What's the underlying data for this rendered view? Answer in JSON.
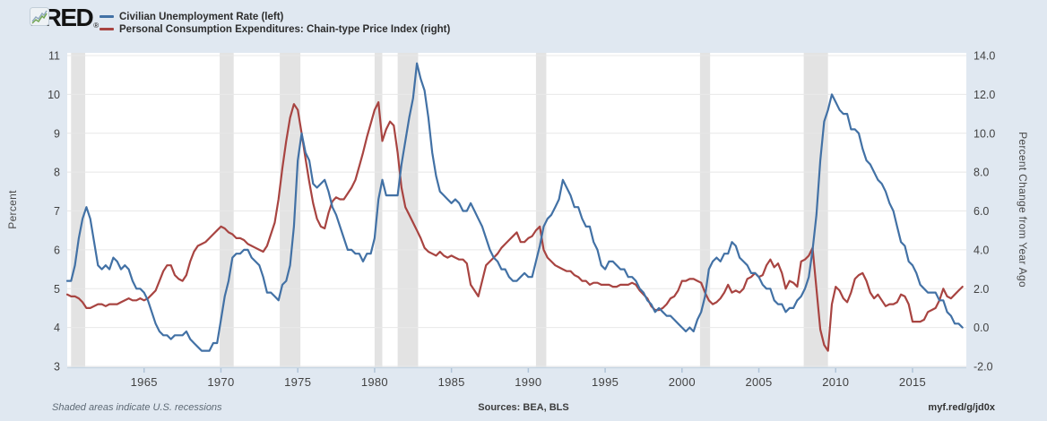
{
  "header": {
    "logo_text": "FRED",
    "reg_mark": "®",
    "legend": [
      {
        "label": "Civilian Unemployment Rate (left)",
        "color": "#4271a5"
      },
      {
        "label": "Personal Consumption Expenditures: Chain-type Price Index (right)",
        "color": "#a84441"
      }
    ]
  },
  "footer": {
    "recession_note": "Shaded areas indicate U.S. recessions",
    "sources": "Sources: BEA, BLS",
    "short_url": "myf.red/g/jd0x"
  },
  "chart_data": {
    "type": "line",
    "x_range": [
      1960,
      2018.5
    ],
    "x_ticks": [
      1965,
      1970,
      1975,
      1980,
      1985,
      1990,
      1995,
      2000,
      2005,
      2010,
      2015
    ],
    "grid": true,
    "plot_bg": "#ffffff",
    "grid_color": "#e8e8e8",
    "band_color": "#e3e3e3",
    "axis_line_color": "#c7d6e3",
    "tick_color": "#b0c4d8",
    "tick_label_color": "#424242",
    "left_axis": {
      "label": "Percent",
      "range": [
        3,
        11
      ],
      "ticks": [
        3,
        4,
        5,
        6,
        7,
        8,
        9,
        10,
        11
      ],
      "tick_labels": [
        "3",
        "4",
        "5",
        "6",
        "7",
        "8",
        "9",
        "10",
        "11"
      ]
    },
    "right_axis": {
      "label": "Percent Change from Year Ago",
      "range": [
        -2,
        14
      ],
      "ticks": [
        -2,
        0,
        2,
        4,
        6,
        8,
        10,
        12,
        14
      ],
      "tick_labels": [
        "-2.0",
        "0.0",
        "2.0",
        "4.0",
        "6.0",
        "8.0",
        "10.0",
        "12.0",
        "14.0"
      ]
    },
    "recessions": [
      [
        1960.25,
        1961.17
      ],
      [
        1969.92,
        1970.83
      ],
      [
        1973.83,
        1975.17
      ],
      [
        1980.0,
        1980.5
      ],
      [
        1981.5,
        1982.83
      ],
      [
        1990.5,
        1991.17
      ],
      [
        2001.17,
        2001.83
      ],
      [
        2007.92,
        2009.5
      ]
    ],
    "series": [
      {
        "name": "Personal Consumption Expenditures: Chain-type Price Index",
        "axis": "right",
        "color": "#a84441",
        "x_start": 1960.0,
        "x_step": 0.25,
        "values": [
          1.7,
          1.6,
          1.6,
          1.5,
          1.3,
          1.0,
          1.0,
          1.1,
          1.2,
          1.2,
          1.1,
          1.2,
          1.2,
          1.2,
          1.3,
          1.4,
          1.5,
          1.4,
          1.4,
          1.5,
          1.4,
          1.5,
          1.7,
          1.9,
          2.4,
          2.9,
          3.2,
          3.2,
          2.7,
          2.5,
          2.4,
          2.7,
          3.4,
          3.9,
          4.2,
          4.3,
          4.4,
          4.6,
          4.8,
          5.0,
          5.2,
          5.1,
          4.9,
          4.8,
          4.6,
          4.6,
          4.5,
          4.3,
          4.2,
          4.1,
          4.0,
          3.9,
          4.2,
          4.8,
          5.4,
          6.6,
          8.2,
          9.6,
          10.8,
          11.5,
          11.2,
          10.0,
          8.7,
          7.5,
          6.4,
          5.6,
          5.2,
          5.1,
          5.9,
          6.5,
          6.7,
          6.6,
          6.6,
          6.9,
          7.2,
          7.6,
          8.3,
          9.0,
          9.8,
          10.5,
          11.2,
          11.6,
          9.6,
          10.2,
          10.6,
          10.4,
          9.0,
          7.2,
          6.2,
          5.8,
          5.4,
          5.0,
          4.6,
          4.1,
          3.9,
          3.8,
          3.7,
          3.9,
          3.7,
          3.6,
          3.7,
          3.6,
          3.5,
          3.5,
          3.3,
          2.2,
          1.9,
          1.6,
          2.4,
          3.2,
          3.4,
          3.6,
          3.8,
          4.1,
          4.3,
          4.5,
          4.7,
          4.9,
          4.4,
          4.4,
          4.6,
          4.7,
          5.0,
          5.2,
          4.0,
          3.6,
          3.4,
          3.2,
          3.1,
          3.0,
          2.9,
          2.9,
          2.7,
          2.6,
          2.4,
          2.4,
          2.2,
          2.3,
          2.3,
          2.2,
          2.2,
          2.2,
          2.1,
          2.1,
          2.2,
          2.2,
          2.2,
          2.3,
          2.2,
          1.9,
          1.7,
          1.5,
          1.1,
          0.9,
          0.9,
          1.0,
          1.2,
          1.5,
          1.6,
          1.9,
          2.4,
          2.4,
          2.5,
          2.5,
          2.4,
          2.3,
          1.8,
          1.4,
          1.2,
          1.3,
          1.5,
          1.8,
          2.2,
          1.8,
          1.9,
          1.8,
          2.0,
          2.5,
          2.6,
          2.8,
          2.6,
          2.7,
          3.2,
          3.5,
          3.1,
          3.3,
          2.8,
          2.0,
          2.4,
          2.3,
          2.1,
          3.4,
          3.5,
          3.7,
          4.1,
          2.0,
          -0.1,
          -0.9,
          -1.2,
          1.2,
          2.1,
          1.9,
          1.5,
          1.3,
          1.8,
          2.5,
          2.7,
          2.8,
          2.4,
          1.8,
          1.5,
          1.7,
          1.4,
          1.1,
          1.2,
          1.2,
          1.3,
          1.7,
          1.6,
          1.2,
          0.3,
          0.3,
          0.3,
          0.4,
          0.8,
          0.9,
          1.0,
          1.4,
          2.0,
          1.6,
          1.5,
          1.7,
          1.9,
          2.1
        ]
      },
      {
        "name": "Civilian Unemployment Rate",
        "axis": "left",
        "color": "#4271a5",
        "x_start": 1960.0,
        "x_step": 0.25,
        "values": [
          5.2,
          5.2,
          5.6,
          6.3,
          6.8,
          7.1,
          6.8,
          6.2,
          5.6,
          5.5,
          5.6,
          5.5,
          5.8,
          5.7,
          5.5,
          5.6,
          5.5,
          5.2,
          5.0,
          5.0,
          4.9,
          4.7,
          4.4,
          4.1,
          3.9,
          3.8,
          3.8,
          3.7,
          3.8,
          3.8,
          3.8,
          3.9,
          3.7,
          3.6,
          3.5,
          3.4,
          3.4,
          3.4,
          3.6,
          3.6,
          4.2,
          4.8,
          5.2,
          5.8,
          5.9,
          5.9,
          6.0,
          6.0,
          5.8,
          5.7,
          5.6,
          5.3,
          4.9,
          4.9,
          4.8,
          4.7,
          5.1,
          5.2,
          5.6,
          6.6,
          8.3,
          9.0,
          8.5,
          8.3,
          7.7,
          7.6,
          7.7,
          7.8,
          7.5,
          7.1,
          6.9,
          6.6,
          6.3,
          6.0,
          6.0,
          5.9,
          5.9,
          5.7,
          5.9,
          5.9,
          6.3,
          7.3,
          7.8,
          7.4,
          7.4,
          7.4,
          7.4,
          8.2,
          8.8,
          9.4,
          9.9,
          10.8,
          10.4,
          10.1,
          9.4,
          8.5,
          7.9,
          7.5,
          7.4,
          7.3,
          7.2,
          7.3,
          7.2,
          7.0,
          7.0,
          7.2,
          7.0,
          6.8,
          6.6,
          6.3,
          6.0,
          5.8,
          5.7,
          5.5,
          5.5,
          5.3,
          5.2,
          5.2,
          5.3,
          5.4,
          5.3,
          5.3,
          5.7,
          6.1,
          6.6,
          6.8,
          6.9,
          7.1,
          7.3,
          7.8,
          7.6,
          7.4,
          7.1,
          7.1,
          6.8,
          6.6,
          6.6,
          6.2,
          6.0,
          5.6,
          5.5,
          5.7,
          5.7,
          5.6,
          5.5,
          5.5,
          5.3,
          5.3,
          5.2,
          5.0,
          4.9,
          4.7,
          4.6,
          4.4,
          4.5,
          4.4,
          4.3,
          4.3,
          4.2,
          4.1,
          4.0,
          3.9,
          4.0,
          3.9,
          4.2,
          4.4,
          4.8,
          5.5,
          5.7,
          5.8,
          5.7,
          5.9,
          5.9,
          6.2,
          6.1,
          5.8,
          5.7,
          5.6,
          5.4,
          5.4,
          5.3,
          5.1,
          5.0,
          5.0,
          4.7,
          4.6,
          4.6,
          4.4,
          4.5,
          4.5,
          4.7,
          4.8,
          5.0,
          5.3,
          6.0,
          6.9,
          8.3,
          9.3,
          9.6,
          10.0,
          9.8,
          9.6,
          9.5,
          9.5,
          9.1,
          9.1,
          9.0,
          8.6,
          8.3,
          8.2,
          8.0,
          7.8,
          7.7,
          7.5,
          7.2,
          7.0,
          6.6,
          6.2,
          6.1,
          5.7,
          5.6,
          5.4,
          5.1,
          5.0,
          4.9,
          4.9,
          4.9,
          4.7,
          4.7,
          4.4,
          4.3,
          4.1,
          4.1,
          4.0
        ]
      }
    ]
  }
}
